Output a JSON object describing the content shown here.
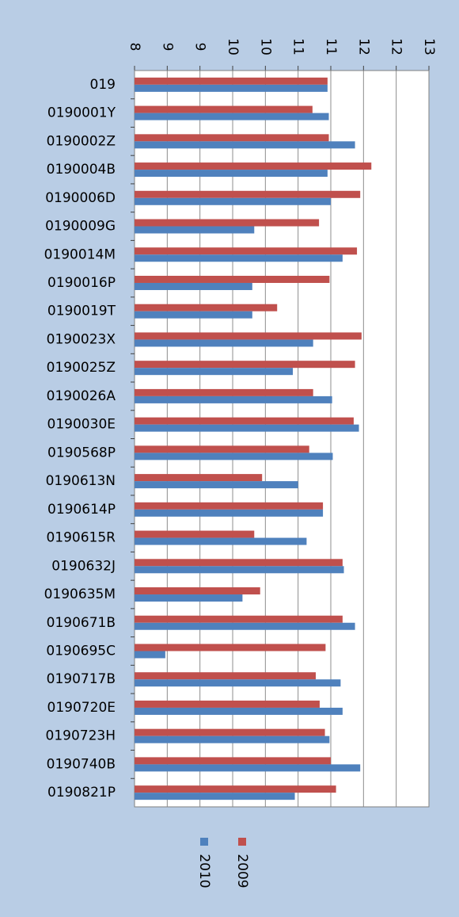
{
  "chart_data": {
    "type": "bar",
    "orientation": "horizontal",
    "categories": [
      "019",
      "0190001Y",
      "0190002Z",
      "0190004B",
      "0190006D",
      "0190009G",
      "0190014M",
      "0190016P",
      "0190019T",
      "0190023X",
      "0190025Z",
      "0190026A",
      "0190030E",
      "0190568P",
      "0190613N",
      "0190614P",
      "0190615R",
      "0190632J",
      "0190635M",
      "0190671B",
      "0190695C",
      "0190717B",
      "0190720E",
      "0190723H",
      "0190740B",
      "0190821P"
    ],
    "series": [
      {
        "name": "2009",
        "color": "#c0504d",
        "values": [
          10.95,
          10.72,
          10.97,
          11.62,
          11.45,
          10.82,
          11.4,
          10.98,
          10.18,
          11.47,
          11.37,
          10.73,
          11.35,
          10.67,
          9.95,
          10.88,
          9.83,
          11.18,
          9.92,
          11.18,
          10.92,
          10.77,
          10.83,
          10.91,
          11.0,
          11.08
        ]
      },
      {
        "name": "2010",
        "color": "#4f81bd",
        "values": [
          10.95,
          10.97,
          11.37,
          10.95,
          11.0,
          9.83,
          11.18,
          9.8,
          9.8,
          10.73,
          10.42,
          11.02,
          11.43,
          11.03,
          10.5,
          10.88,
          10.63,
          11.2,
          9.65,
          11.37,
          8.47,
          11.15,
          11.18,
          10.98,
          11.45,
          10.45
        ]
      }
    ],
    "xticks": [
      "8",
      "9",
      "9",
      "10",
      "10",
      "11",
      "11",
      "12",
      "12",
      "13"
    ],
    "xlim": [
      8,
      12.5
    ],
    "grid": true,
    "legend_position": "bottom",
    "title": "",
    "xlabel": "",
    "ylabel": ""
  }
}
